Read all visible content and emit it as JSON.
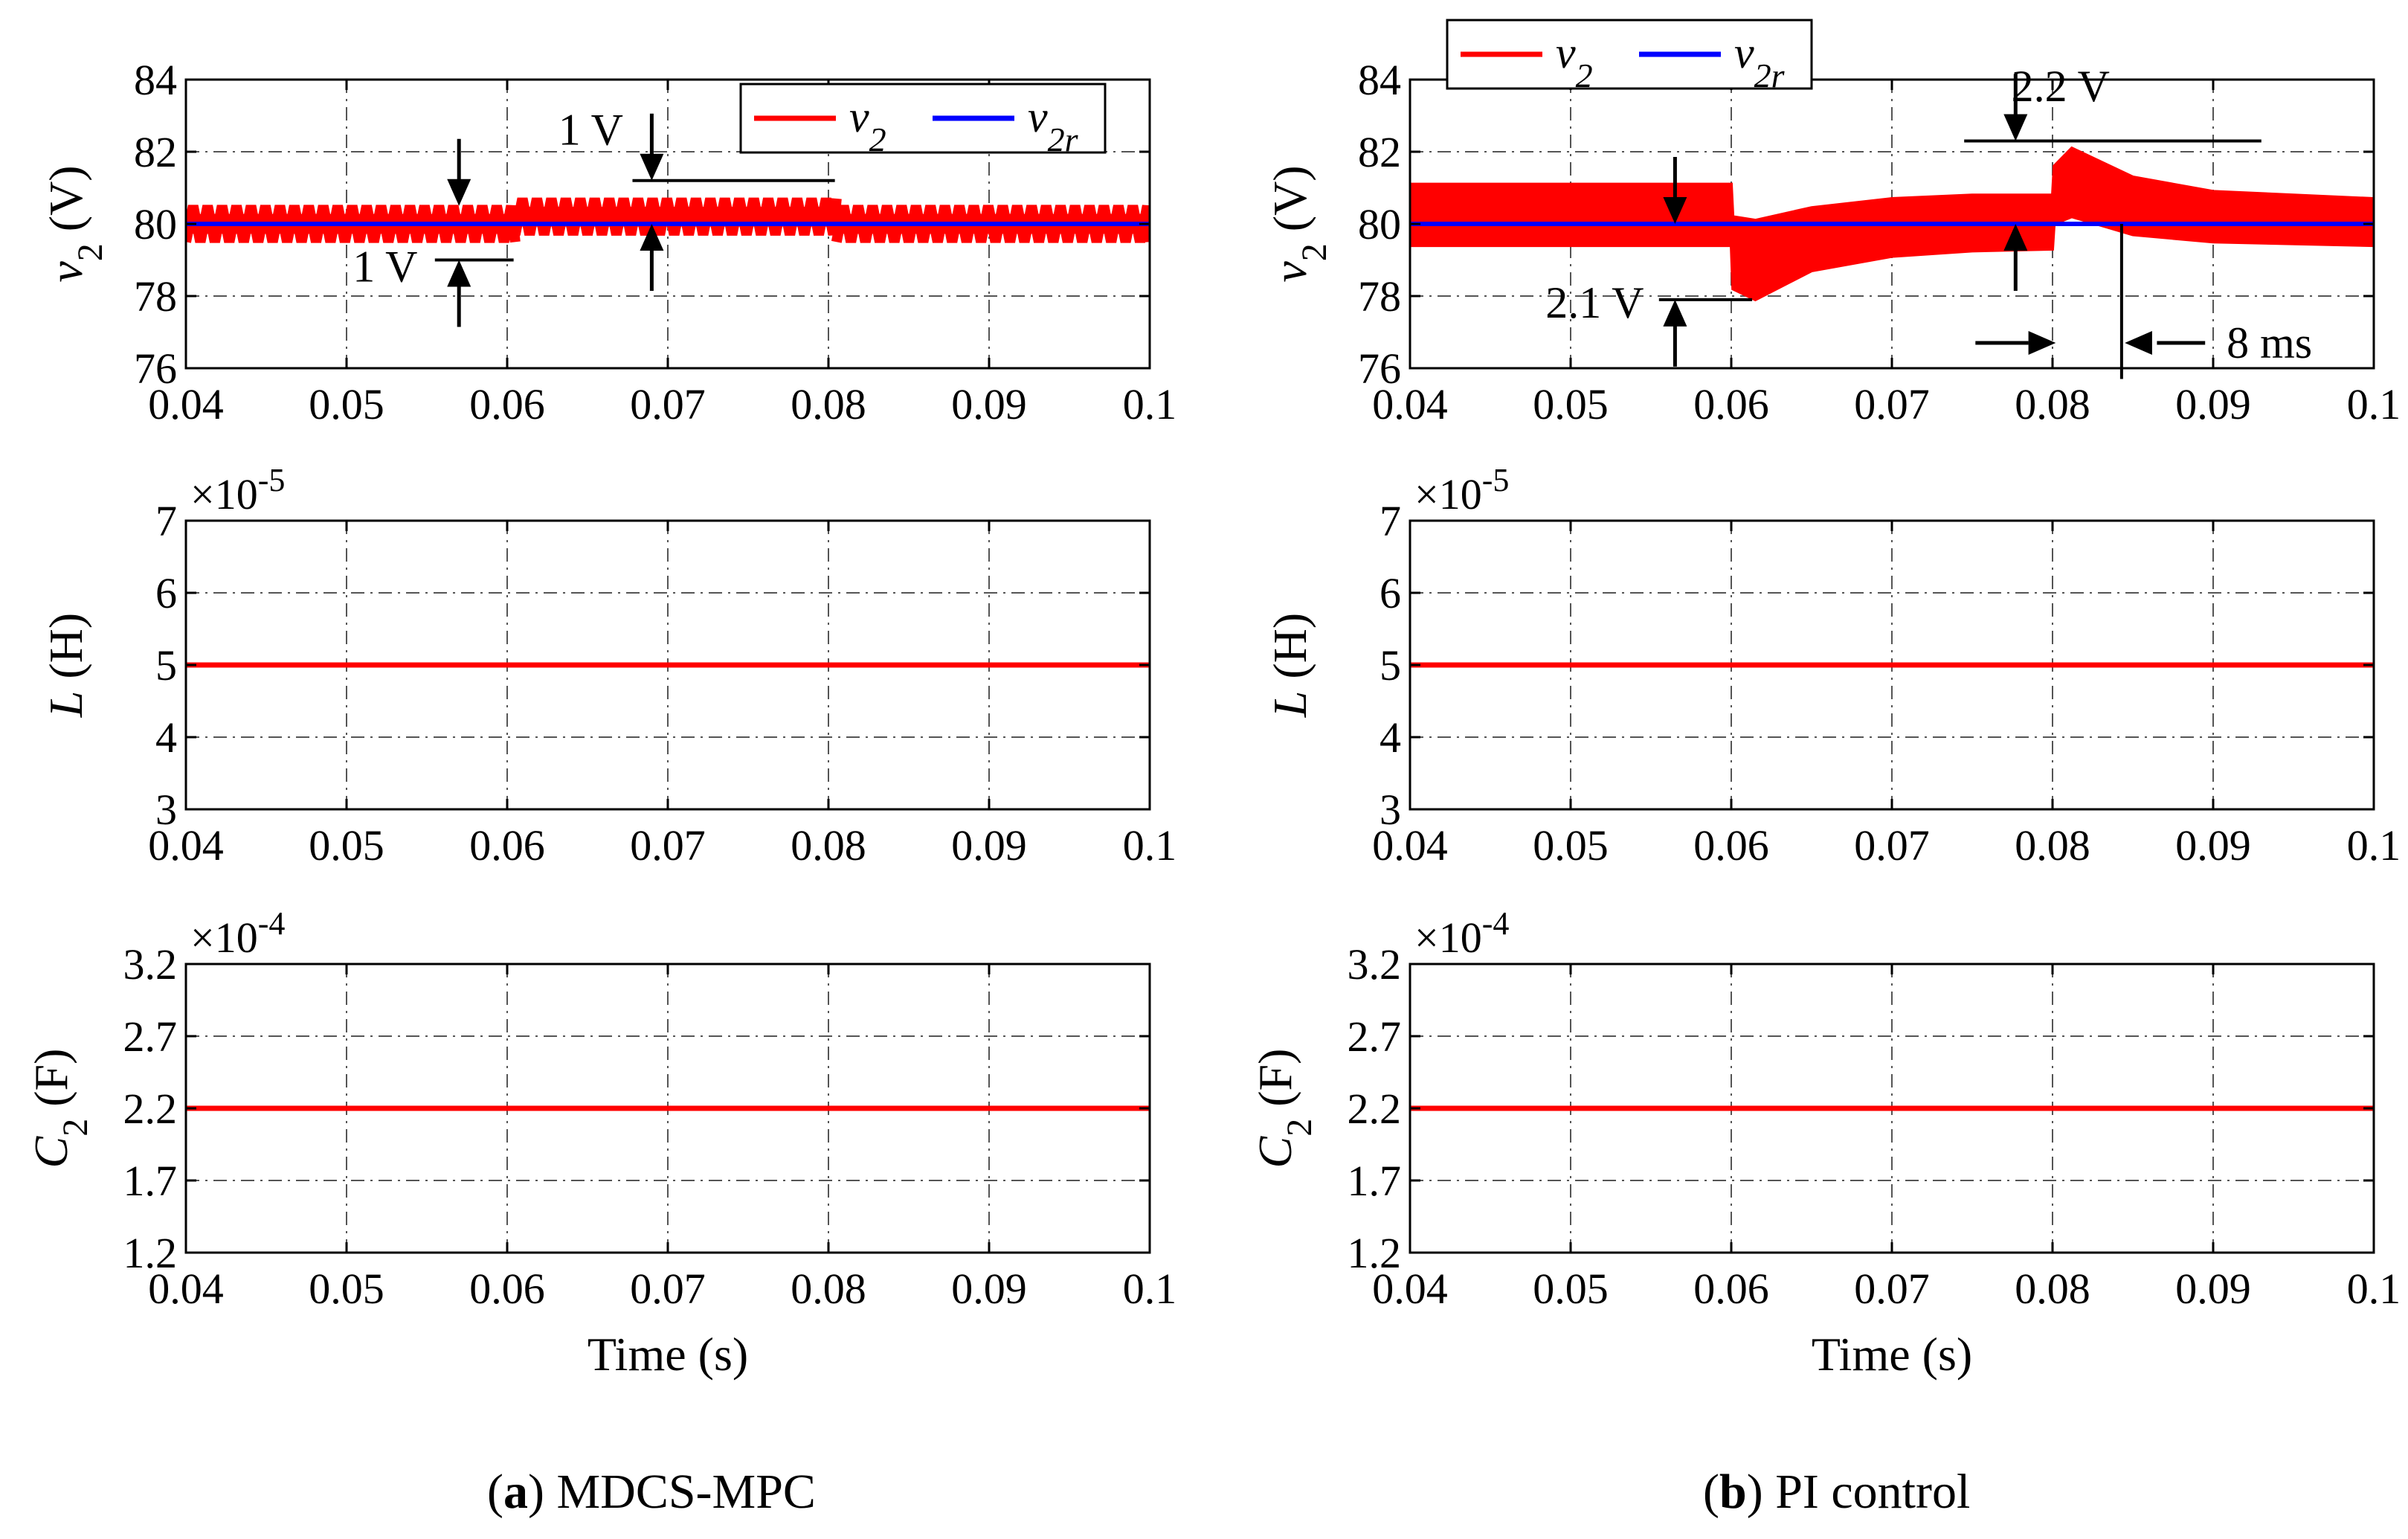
{
  "captions": [
    {
      "letter": "a",
      "text": "MDCS-MPC"
    },
    {
      "letter": "b",
      "text": "PI control"
    }
  ],
  "colors": {
    "v2": "#ff0000",
    "v2r": "#0000ff",
    "param": "#ff0000",
    "grid": "#555555"
  },
  "chart_data": [
    {
      "id": "a-v2",
      "panel": "a",
      "type": "line",
      "ylabel_main": "v",
      "ylabel_sub": "2",
      "ylabel_unit": "(V)",
      "xlim": [
        0.04,
        0.1
      ],
      "ylim": [
        76,
        84
      ],
      "xticks": [
        "0.04",
        "0.05",
        "0.06",
        "0.07",
        "0.08",
        "0.09",
        "0.1"
      ],
      "yticks": [
        "76",
        "78",
        "80",
        "82",
        "84"
      ],
      "legend": {
        "placement": "top-right",
        "entries": [
          {
            "main": "v",
            "sub": "2"
          },
          {
            "main": "v",
            "sub": "2r"
          }
        ]
      },
      "series": [
        {
          "name": "v2",
          "segments": [
            {
              "x": [
                0.04,
                0.0605
              ],
              "center": 80.0,
              "amplitude": 0.5
            },
            {
              "x": [
                0.0605,
                0.0805
              ],
              "center": 80.2,
              "amplitude": 0.5
            },
            {
              "x": [
                0.0805,
                0.1
              ],
              "center": 80.0,
              "amplitude": 0.5
            }
          ]
        },
        {
          "name": "v2r",
          "x": [
            0.04,
            0.1
          ],
          "y": [
            80,
            80
          ]
        }
      ],
      "annotations": [
        {
          "text": "1 V"
        },
        {
          "text": "1 V"
        }
      ]
    },
    {
      "id": "a-L",
      "panel": "a",
      "type": "line",
      "ylabel_main": "L",
      "ylabel_unit": "(H)",
      "exponent": "-5",
      "xlim": [
        0.04,
        0.1
      ],
      "ylim": [
        3,
        7
      ],
      "xticks": [
        "0.04",
        "0.05",
        "0.06",
        "0.07",
        "0.08",
        "0.09",
        "0.1"
      ],
      "yticks": [
        "3",
        "4",
        "5",
        "6",
        "7"
      ],
      "series": [
        {
          "x": [
            0.04,
            0.1
          ],
          "y": [
            5,
            5
          ]
        }
      ]
    },
    {
      "id": "a-C2",
      "panel": "a",
      "type": "line",
      "ylabel_main": "C",
      "ylabel_sub": "2",
      "ylabel_unit": "(F)",
      "exponent": "-4",
      "xlim": [
        0.04,
        0.1
      ],
      "ylim": [
        1.2,
        3.2
      ],
      "xticks": [
        "0.04",
        "0.05",
        "0.06",
        "0.07",
        "0.08",
        "0.09",
        "0.1"
      ],
      "yticks": [
        "1.2",
        "1.7",
        "2.2",
        "2.7",
        "3.2"
      ],
      "xlabel": "Time (s)",
      "series": [
        {
          "x": [
            0.04,
            0.1
          ],
          "y": [
            2.2,
            2.2
          ]
        }
      ]
    },
    {
      "id": "b-v2",
      "panel": "b",
      "type": "line",
      "ylabel_main": "v",
      "ylabel_sub": "2",
      "ylabel_unit": "(V)",
      "xlim": [
        0.04,
        0.1
      ],
      "ylim": [
        76,
        84
      ],
      "xticks": [
        "0.04",
        "0.05",
        "0.06",
        "0.07",
        "0.08",
        "0.09",
        "0.1"
      ],
      "yticks": [
        "76",
        "78",
        "80",
        "82",
        "84"
      ],
      "legend": {
        "placement": "top-left",
        "entries": [
          {
            "main": "v",
            "sub": "2"
          },
          {
            "main": "v",
            "sub": "2r"
          }
        ]
      },
      "series": [
        {
          "name": "v2",
          "envelope": {
            "x": [
              0.04,
              0.06,
              0.0601,
              0.0615,
              0.065,
              0.07,
              0.075,
              0.08,
              0.0801,
              0.0812,
              0.085,
              0.09,
              0.1
            ],
            "upper": [
              81.1,
              81.1,
              80.2,
              80.1,
              80.45,
              80.7,
              80.8,
              80.8,
              81.6,
              82.1,
              81.3,
              80.9,
              80.7
            ],
            "lower": [
              79.4,
              79.4,
              78.2,
              77.9,
              78.7,
              79.1,
              79.25,
              79.3,
              80.0,
              80.2,
              79.7,
              79.5,
              79.4
            ]
          }
        },
        {
          "name": "v2r",
          "x": [
            0.04,
            0.1
          ],
          "y": [
            80,
            80
          ]
        }
      ],
      "annotations": [
        {
          "text": "2.2 V"
        },
        {
          "text": "2.1 V"
        },
        {
          "text": "8 ms"
        }
      ]
    },
    {
      "id": "b-L",
      "panel": "b",
      "type": "line",
      "ylabel_main": "L",
      "ylabel_unit": "(H)",
      "exponent": "-5",
      "xlim": [
        0.04,
        0.1
      ],
      "ylim": [
        3,
        7
      ],
      "xticks": [
        "0.04",
        "0.05",
        "0.06",
        "0.07",
        "0.08",
        "0.09",
        "0.1"
      ],
      "yticks": [
        "3",
        "4",
        "5",
        "6",
        "7"
      ],
      "series": [
        {
          "x": [
            0.04,
            0.1
          ],
          "y": [
            5,
            5
          ]
        }
      ]
    },
    {
      "id": "b-C2",
      "panel": "b",
      "type": "line",
      "ylabel_main": "C",
      "ylabel_sub": "2",
      "ylabel_unit": "(F)",
      "exponent": "-4",
      "xlim": [
        0.04,
        0.1
      ],
      "ylim": [
        1.2,
        3.2
      ],
      "xticks": [
        "0.04",
        "0.05",
        "0.06",
        "0.07",
        "0.08",
        "0.09",
        "0.1"
      ],
      "yticks": [
        "1.2",
        "1.7",
        "2.2",
        "2.7",
        "3.2"
      ],
      "xlabel": "Time (s)",
      "series": [
        {
          "x": [
            0.04,
            0.1
          ],
          "y": [
            2.2,
            2.2
          ]
        }
      ]
    }
  ]
}
